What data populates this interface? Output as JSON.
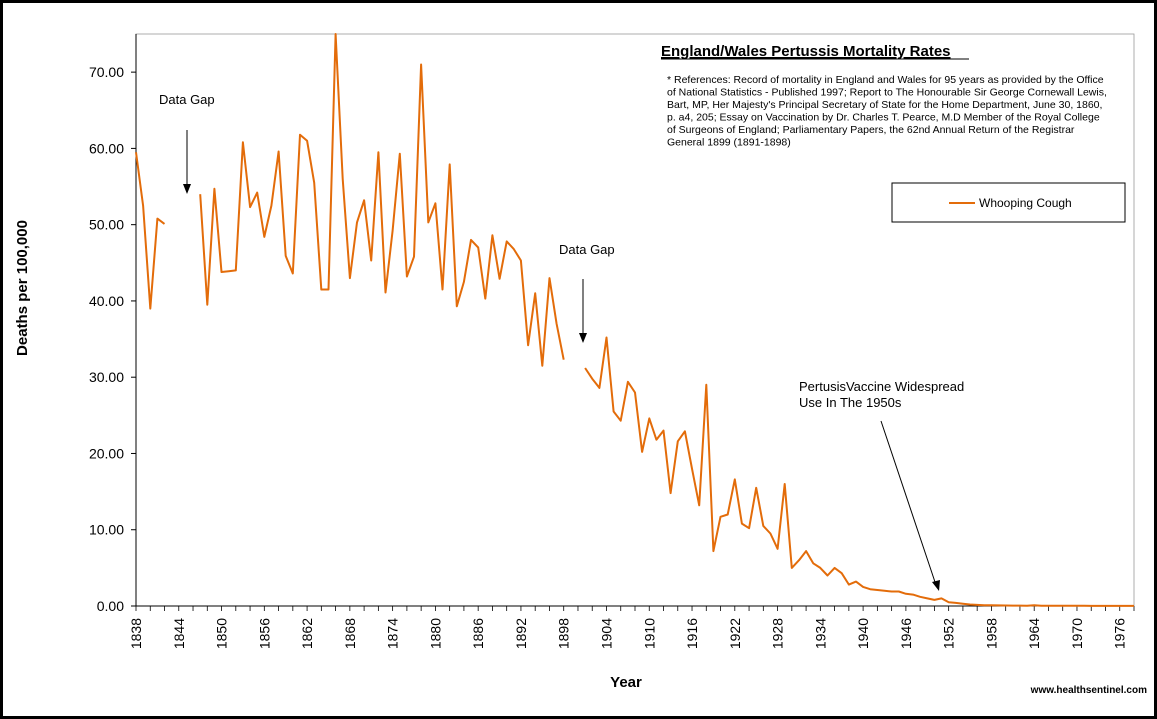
{
  "chart_data": {
    "type": "line",
    "title": "England/Wales Pertussis Mortality Rates",
    "xlabel": "Year",
    "ylabel": "Deaths per 100,000",
    "ylim": [
      0,
      75
    ],
    "xlim": [
      1838,
      1978
    ],
    "y_ticks": [
      "0.00",
      "10.00",
      "20.00",
      "30.00",
      "40.00",
      "50.00",
      "60.00",
      "70.00"
    ],
    "x_ticks": [
      "1838",
      "1844",
      "1850",
      "1856",
      "1862",
      "1868",
      "1874",
      "1880",
      "1886",
      "1892",
      "1898",
      "1904",
      "1910",
      "1916",
      "1922",
      "1928",
      "1934",
      "1940",
      "1946",
      "1952",
      "1958",
      "1964",
      "1970",
      "1976"
    ],
    "grid": false,
    "legend_position": "top-right",
    "series": [
      {
        "name": "Whooping Cough",
        "color": "#E36C0A",
        "segments": [
          {
            "x": [
              1838,
              1839,
              1840,
              1841,
              1842
            ],
            "y": [
              59.5,
              52.5,
              39.0,
              50.8,
              50.1
            ]
          },
          {
            "x": [
              1847,
              1848,
              1849,
              1850,
              1851,
              1852,
              1853,
              1854,
              1855,
              1856,
              1857,
              1858,
              1859,
              1860,
              1861,
              1862,
              1863,
              1864,
              1865,
              1866,
              1867,
              1868,
              1869,
              1870,
              1871,
              1872,
              1873,
              1874,
              1875,
              1876,
              1877,
              1878,
              1879,
              1880,
              1881,
              1882,
              1883,
              1884,
              1885,
              1886,
              1887,
              1888,
              1889,
              1890,
              1891,
              1892,
              1893,
              1894,
              1895,
              1896,
              1897,
              1898
            ],
            "y": [
              54.0,
              39.5,
              54.7,
              43.8,
              43.9,
              44.0,
              60.8,
              52.3,
              54.2,
              48.4,
              52.5,
              59.6,
              45.9,
              43.6,
              61.8,
              61.0,
              55.5,
              41.5,
              41.5,
              75.0,
              56.0,
              43.0,
              50.3,
              53.2,
              45.3,
              59.5,
              41.1,
              49.2,
              59.3,
              43.2,
              45.8,
              71.0,
              50.3,
              52.8,
              41.5,
              57.9,
              39.3,
              42.5,
              48.0,
              47.0,
              40.3,
              48.6,
              42.9,
              47.8,
              46.8,
              45.3,
              34.2,
              41.0,
              31.5,
              43.0,
              37.0,
              32.3
            ]
          },
          {
            "x": [
              1901,
              1902,
              1903,
              1904,
              1905,
              1906,
              1907,
              1908,
              1909,
              1910,
              1911,
              1912,
              1913,
              1914,
              1915,
              1916,
              1917,
              1918,
              1919,
              1920,
              1921,
              1922,
              1923,
              1924,
              1925,
              1926,
              1927,
              1928,
              1929,
              1930,
              1931,
              1932,
              1933,
              1934,
              1935,
              1936,
              1937,
              1938,
              1939,
              1940,
              1941,
              1942,
              1943,
              1944,
              1945,
              1946,
              1947,
              1948,
              1949,
              1950,
              1951,
              1952,
              1953,
              1954,
              1955,
              1956,
              1957,
              1958,
              1959,
              1960,
              1961,
              1962,
              1963,
              1964,
              1965,
              1966,
              1967,
              1968,
              1969,
              1970,
              1971,
              1972,
              1973,
              1974,
              1975,
              1976,
              1977,
              1978
            ],
            "y": [
              31.2,
              29.8,
              28.6,
              35.2,
              25.5,
              24.3,
              29.4,
              28.0,
              20.2,
              24.6,
              21.8,
              23.0,
              14.8,
              21.6,
              22.9,
              18.0,
              13.2,
              29.0,
              7.2,
              11.7,
              12.0,
              16.6,
              10.8,
              10.2,
              15.5,
              10.5,
              9.5,
              7.5,
              16.0,
              5.0,
              6.0,
              7.2,
              5.6,
              5.0,
              4.0,
              5.0,
              4.3,
              2.8,
              3.2,
              2.5,
              2.2,
              2.1,
              2.0,
              1.9,
              1.9,
              1.6,
              1.5,
              1.2,
              1.0,
              0.8,
              1.0,
              0.5,
              0.4,
              0.3,
              0.2,
              0.15,
              0.1,
              0.1,
              0.08,
              0.06,
              0.05,
              0.05,
              0.04,
              0.1,
              0.04,
              0.03,
              0.03,
              0.02,
              0.02,
              0.02,
              0.02,
              0.01,
              0.01,
              0.01,
              0.01,
              0.01,
              0.01,
              0.01
            ]
          }
        ]
      }
    ]
  },
  "annotations": {
    "data_gap_1": "Data Gap",
    "data_gap_2": "Data Gap",
    "vaccine_line1": "PertusisVaccine Widespread",
    "vaccine_line2": "Use In  The  1950s"
  },
  "references": [
    "* References: Record of mortality in England and Wales for 95 years as provided by the Office",
    "of National Statistics - Published 1997; Report to The Honourable Sir George Cornewall Lewis,",
    "Bart, MP, Her Majesty's Principal Secretary of State for the Home Department, June 30, 1860,",
    "p. a4, 205; Essay on Vaccination by Dr. Charles T. Pearce, M.D Member of the Royal College",
    "of Surgeons of England; Parliamentary Papers, the 62nd Annual Return of the Registrar",
    "General 1899 (1891-1898)"
  ],
  "credit": "www.healthsentinel.com"
}
